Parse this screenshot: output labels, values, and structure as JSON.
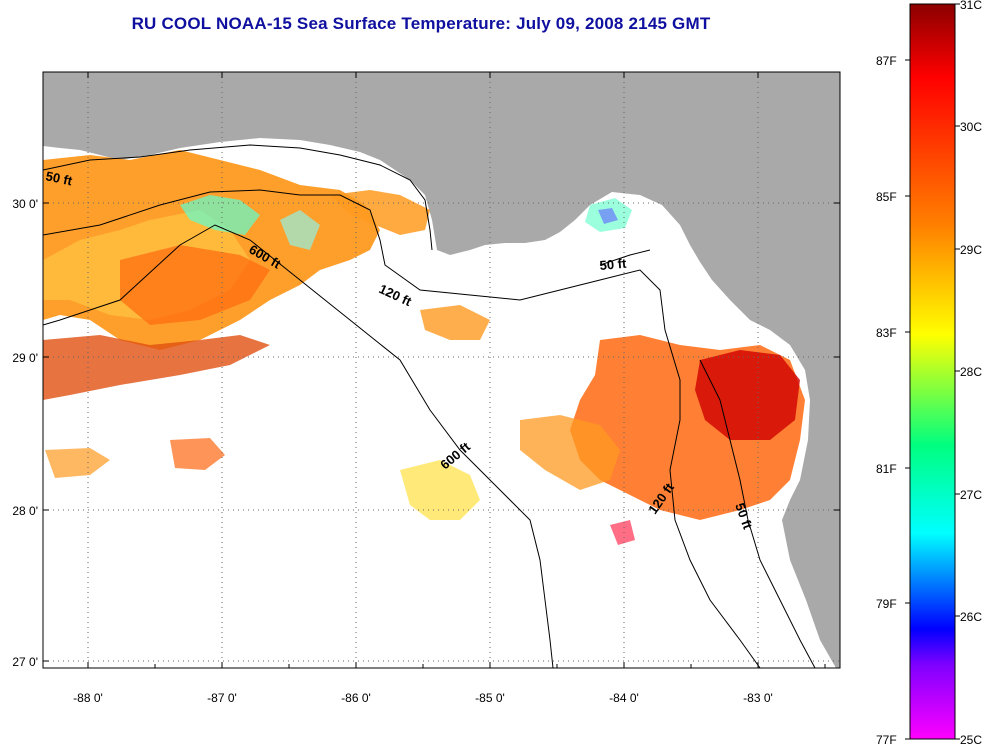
{
  "title": "RU COOL  NOAA-15  Sea Surface Temperature:  July 09, 2008 2145 GMT",
  "map": {
    "x_ticks": [
      "-88 0'",
      "-87 0'",
      "-86 0'",
      "-85 0'",
      "-84 0'",
      "-83 0'"
    ],
    "y_ticks": [
      "30 0'",
      "29 0'",
      "28 0'",
      "27 0'"
    ],
    "contours": [
      {
        "label": "50 ft",
        "id": "c50a"
      },
      {
        "label": "600 ft",
        "id": "c600a"
      },
      {
        "label": "120 ft",
        "id": "c120a"
      },
      {
        "label": "50 ft",
        "id": "c50b"
      },
      {
        "label": "600 ft",
        "id": "c600b"
      },
      {
        "label": "120 ft",
        "id": "c120b"
      },
      {
        "label": "50 ft",
        "id": "c50c"
      }
    ],
    "colors": {
      "land": "#a9a9a9",
      "water": "#ffffff",
      "title": "#1010a0"
    }
  },
  "colorbar": {
    "celsius": [
      "31C",
      "30C",
      "29C",
      "28C",
      "27C",
      "26C",
      "25C"
    ],
    "fahrenheit": [
      "87F",
      "85F",
      "83F",
      "81F",
      "79F",
      "77F"
    ],
    "stops": [
      "#8b0000",
      "#ff0000",
      "#ff7f00",
      "#ffff00",
      "#00ff7f",
      "#00ffff",
      "#0000ff",
      "#8000ff",
      "#ff00ff"
    ]
  }
}
